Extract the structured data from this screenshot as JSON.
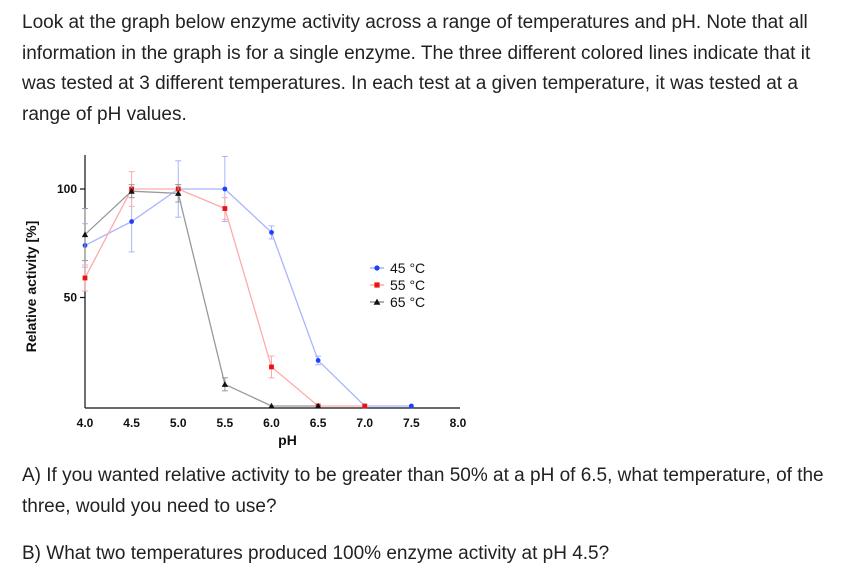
{
  "text": {
    "intro": "Look at the graph below enzyme activity across a range of temperatures and pH.  Note that all information in the graph is for a single enzyme.  The three different colored lines indicate that it was tested at 3 different temperatures.  In each test at a given temperature, it was tested at a range of pH values.",
    "question_a": "A)  If you wanted relative activity to be greater than 50% at a pH of 6.5, what temperature, of the three, would you need to use?",
    "question_b": "B) What two temperatures produced 100% enzyme activity at pH 4.5?"
  },
  "chart_data": {
    "type": "line",
    "xlabel": "pH",
    "ylabel": "Relative activity [%]",
    "xlim": [
      4.0,
      8.0
    ],
    "ylim": [
      0,
      110
    ],
    "x_ticks": [
      "4.0",
      "4.5",
      "5.0",
      "5.5",
      "6.0",
      "6.5",
      "7.0",
      "7.5",
      "8.0"
    ],
    "y_ticks": [
      "50",
      "100"
    ],
    "legend_position": "right",
    "series": [
      {
        "name": "45 °C",
        "color": "#1f3fff",
        "line_color": "#a8b4ff",
        "marker": "circle",
        "x": [
          4.0,
          4.5,
          5.0,
          5.5,
          6.0,
          6.5,
          7.0,
          7.5
        ],
        "y": [
          74,
          85,
          100,
          100,
          80,
          21,
          0,
          0
        ],
        "err": [
          10,
          14,
          13,
          15,
          3,
          2,
          0,
          0
        ]
      },
      {
        "name": "55 °C",
        "color": "#ee1111",
        "line_color": "#ffaaaa",
        "marker": "square",
        "x": [
          4.0,
          4.5,
          5.0,
          5.5,
          6.0,
          6.5,
          7.0
        ],
        "y": [
          59,
          100,
          100,
          91,
          18,
          0,
          0
        ],
        "err": [
          6,
          8,
          2,
          5,
          5,
          0,
          0
        ]
      },
      {
        "name": "65 °C",
        "color": "#111111",
        "line_color": "#999999",
        "marker": "triangle",
        "x": [
          4.0,
          4.5,
          5.0,
          5.5,
          6.0,
          6.5
        ],
        "y": [
          79,
          99,
          98,
          10,
          0,
          0
        ],
        "err": [
          12,
          3,
          4,
          3,
          0,
          0
        ]
      }
    ]
  }
}
